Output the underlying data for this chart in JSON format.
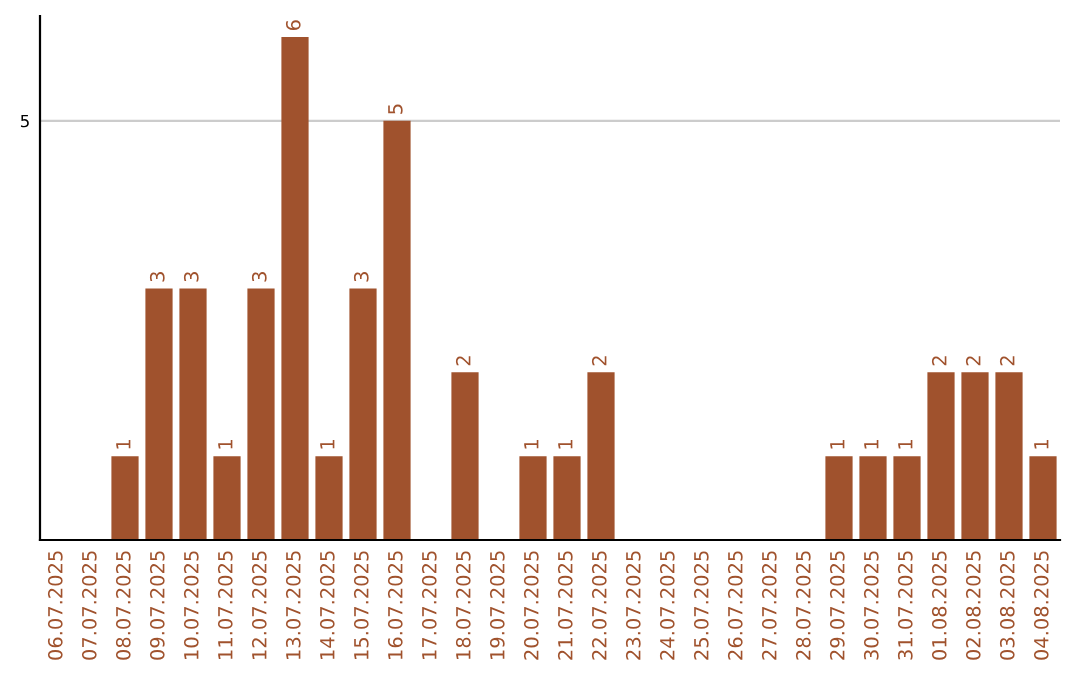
{
  "chart_data": {
    "type": "bar",
    "categories": [
      "06.07.2025",
      "07.07.2025",
      "08.07.2025",
      "09.07.2025",
      "10.07.2025",
      "11.07.2025",
      "12.07.2025",
      "13.07.2025",
      "14.07.2025",
      "15.07.2025",
      "16.07.2025",
      "17.07.2025",
      "18.07.2025",
      "19.07.2025",
      "20.07.2025",
      "21.07.2025",
      "22.07.2025",
      "23.07.2025",
      "24.07.2025",
      "25.07.2025",
      "26.07.2025",
      "27.07.2025",
      "28.07.2025",
      "29.07.2025",
      "30.07.2025",
      "31.07.2025",
      "01.08.2025",
      "02.08.2025",
      "03.08.2025",
      "04.08.2025"
    ],
    "values": [
      0,
      0,
      1,
      3,
      3,
      1,
      3,
      6,
      1,
      3,
      5,
      0,
      2,
      0,
      1,
      1,
      2,
      0,
      0,
      0,
      0,
      0,
      0,
      1,
      1,
      1,
      2,
      2,
      2,
      1
    ],
    "value_labels": [
      null,
      null,
      "1",
      "3",
      "3",
      "1",
      "3",
      "6",
      "1",
      "3",
      "5",
      null,
      "2",
      null,
      "1",
      "1",
      "2",
      null,
      null,
      null,
      null,
      null,
      null,
      "1",
      "1",
      "1",
      "2",
      "2",
      "2",
      "1"
    ],
    "color": "#a0522d",
    "ylim": [
      0,
      6.25
    ],
    "yticks": [
      5
    ],
    "grid": "y"
  }
}
